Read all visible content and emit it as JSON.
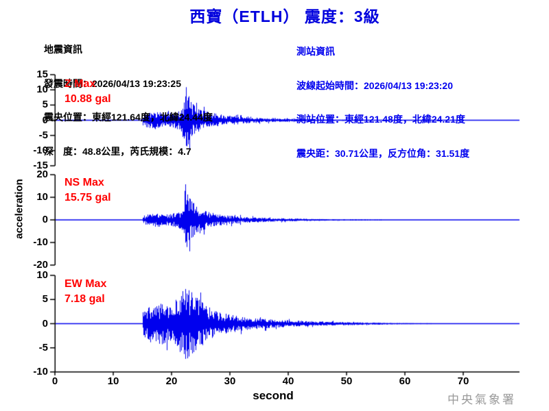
{
  "title": "西寶（ETLH） 震度：3級",
  "event_info": {
    "heading": "地震資訊",
    "lines": [
      "發震時間：2026/04/13 19:23:25",
      "震央位置：東經121.64度，北緯24.44度",
      "深　度：48.8公里，芮氏規模：4.7"
    ]
  },
  "station_info": {
    "heading": "測站資訊",
    "lines": [
      "波線起始時間：2026/04/13 19:23:20",
      "測站位置：東經121.48度，北緯24.21度",
      "震央距：30.71公里，反方位角：31.51度"
    ]
  },
  "watermark": "中央氣象署",
  "colors": {
    "title_blue": "#0000dd",
    "info_blue": "#0000ee",
    "label_red": "#ff0000",
    "wave_blue": "#0000ee",
    "axis_black": "#000000",
    "watermark_gray": "#9a9a9a"
  },
  "chart_data": {
    "type": "line",
    "subtype": "seismogram-3-component",
    "xlabel": "second",
    "ylabel": "acceleration",
    "x_ticks": [
      0,
      10,
      20,
      30,
      40,
      50,
      60,
      70
    ],
    "x_range": [
      0,
      79.6
    ],
    "signal_onset_sec": 15,
    "grid": false,
    "panels": [
      {
        "id": "Z",
        "label": "Z Max",
        "max_label": "10.88 gal",
        "max_gal": 10.88,
        "peak_time_sec": 22.4,
        "ylim": [
          -15,
          15
        ],
        "yticks": [
          15,
          10,
          5,
          0,
          -5,
          -10,
          -15
        ],
        "end_sec": 54.5,
        "spikes": [
          {
            "t": 22.45,
            "amp": 10.88
          },
          {
            "t": 23.0,
            "amp": -9.5
          },
          {
            "t": 22.7,
            "amp": 6.5
          },
          {
            "t": 21.9,
            "amp": -5.5
          }
        ],
        "envelope": [
          [
            15,
            1.8
          ],
          [
            16,
            2.0
          ],
          [
            17,
            2.6
          ],
          [
            18,
            1.9
          ],
          [
            19,
            2.3
          ],
          [
            20,
            2.0
          ],
          [
            21,
            2.6
          ],
          [
            21.8,
            3.2
          ],
          [
            22.2,
            5.5
          ],
          [
            22.5,
            8.5
          ],
          [
            23,
            6.5
          ],
          [
            23.5,
            5.0
          ],
          [
            24,
            3.8
          ],
          [
            25,
            3.0
          ],
          [
            26,
            2.4
          ],
          [
            27,
            2.0
          ],
          [
            28,
            1.7
          ],
          [
            30,
            1.3
          ],
          [
            32,
            1.0
          ],
          [
            34,
            0.8
          ],
          [
            36,
            0.6
          ],
          [
            38,
            0.5
          ],
          [
            40,
            0.42
          ],
          [
            43,
            0.32
          ],
          [
            46,
            0.24
          ],
          [
            49,
            0.18
          ],
          [
            52,
            0.12
          ],
          [
            54,
            0.08
          ],
          [
            54.5,
            0
          ]
        ]
      },
      {
        "id": "NS",
        "label": "NS Max",
        "max_label": "15.75 gal",
        "max_gal": 15.75,
        "peak_time_sec": 22.35,
        "ylim": [
          -20,
          20
        ],
        "yticks": [
          20,
          10,
          0,
          -10,
          -20
        ],
        "end_sec": 56,
        "spikes": [
          {
            "t": 22.35,
            "amp": 15.75
          },
          {
            "t": 22.6,
            "amp": -12
          },
          {
            "t": 23.1,
            "amp": 9.5
          },
          {
            "t": 22.9,
            "amp": -8
          }
        ],
        "envelope": [
          [
            15,
            1.5
          ],
          [
            16,
            2.0
          ],
          [
            17,
            2.4
          ],
          [
            17.5,
            3.2
          ],
          [
            18,
            2.2
          ],
          [
            19,
            2.0
          ],
          [
            20,
            2.4
          ],
          [
            21,
            2.8
          ],
          [
            21.8,
            3.8
          ],
          [
            22.2,
            8.0
          ],
          [
            22.5,
            11.0
          ],
          [
            23,
            9.0
          ],
          [
            23.5,
            7.0
          ],
          [
            24,
            5.5
          ],
          [
            25,
            4.2
          ],
          [
            26,
            3.2
          ],
          [
            27,
            2.6
          ],
          [
            28,
            2.1
          ],
          [
            30,
            1.6
          ],
          [
            32,
            1.2
          ],
          [
            34,
            1.0
          ],
          [
            36,
            0.8
          ],
          [
            38,
            0.65
          ],
          [
            40,
            0.55
          ],
          [
            43,
            0.42
          ],
          [
            46,
            0.3
          ],
          [
            49,
            0.22
          ],
          [
            52,
            0.15
          ],
          [
            55,
            0.1
          ],
          [
            56,
            0
          ]
        ]
      },
      {
        "id": "EW",
        "label": "EW Max",
        "max_label": "7.18 gal",
        "max_gal": 7.18,
        "peak_time_sec": 22.4,
        "ylim": [
          -10,
          10
        ],
        "yticks": [
          10,
          5,
          0,
          -5,
          -10
        ],
        "end_sec": 64.5,
        "spikes": [
          {
            "t": 22.4,
            "amp": 7.18
          },
          {
            "t": 22.9,
            "amp": -6.8
          },
          {
            "t": 23.4,
            "amp": 6.5
          },
          {
            "t": 21.7,
            "amp": -5.5
          }
        ],
        "envelope": [
          [
            15,
            2.2
          ],
          [
            16,
            2.8
          ],
          [
            16.5,
            3.8
          ],
          [
            17,
            3.0
          ],
          [
            18,
            3.3
          ],
          [
            18.5,
            4.2
          ],
          [
            19,
            3.0
          ],
          [
            20,
            3.3
          ],
          [
            21,
            4.5
          ],
          [
            21.5,
            5.2
          ],
          [
            22,
            5.8
          ],
          [
            22.4,
            6.2
          ],
          [
            23,
            5.8
          ],
          [
            23.5,
            5.2
          ],
          [
            24,
            4.8
          ],
          [
            24.5,
            4.4
          ],
          [
            25,
            4.2
          ],
          [
            25.5,
            3.6
          ],
          [
            26,
            3.1
          ],
          [
            27,
            2.5
          ],
          [
            28,
            2.1
          ],
          [
            29,
            1.8
          ],
          [
            30,
            1.6
          ],
          [
            32,
            1.25
          ],
          [
            34,
            1.0
          ],
          [
            36,
            0.85
          ],
          [
            38,
            0.7
          ],
          [
            40,
            0.6
          ],
          [
            43,
            0.48
          ],
          [
            46,
            0.38
          ],
          [
            49,
            0.3
          ],
          [
            52,
            0.24
          ],
          [
            55,
            0.18
          ],
          [
            58,
            0.12
          ],
          [
            61,
            0.08
          ],
          [
            63,
            0.05
          ],
          [
            64.5,
            0
          ]
        ]
      }
    ]
  }
}
